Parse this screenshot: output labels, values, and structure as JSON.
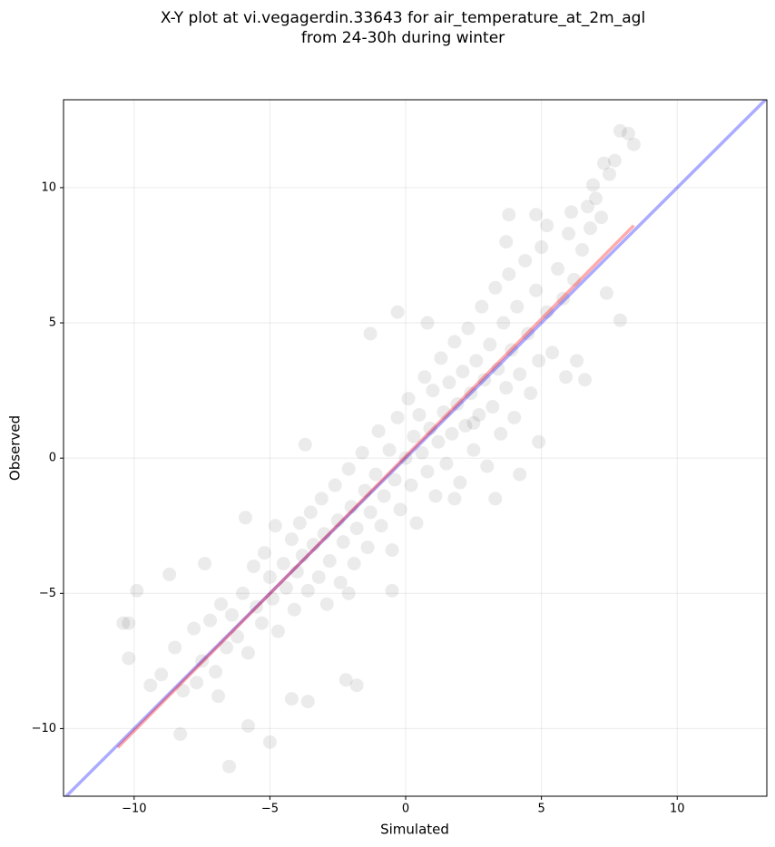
{
  "chart_data": {
    "type": "scatter",
    "title": [
      "X-Y plot at vi.vegagerdin.33643 for air_temperature_at_2m_agl",
      "from 24-30h during winter"
    ],
    "xlabel": "Simulated",
    "ylabel": "Observed",
    "xlim": [
      -12.6,
      13.3
    ],
    "ylim": [
      -12.5,
      13.25
    ],
    "xticks": [
      {
        "value": -10,
        "label": "−10"
      },
      {
        "value": -5,
        "label": "−5"
      },
      0,
      5,
      10
    ],
    "yticks": [
      {
        "value": -10,
        "label": "−10"
      },
      {
        "value": -5,
        "label": "−5"
      },
      0,
      5,
      10
    ],
    "grid": true,
    "series": [
      {
        "color": "#000000",
        "x": [
          -10.4,
          -10.2,
          -9.9,
          -10.2,
          -9.4,
          -8.7,
          -8.3,
          -6.5,
          -5.0,
          -5.8,
          -2.2,
          -1.3,
          -0.3,
          0.8,
          4.9,
          5.9,
          6.3,
          6.6,
          7.4,
          7.9,
          8.2,
          7.9,
          8.4,
          7.7,
          7.3,
          6.9,
          6.7,
          6.1,
          5.2,
          4.8,
          3.8,
          3.7,
          -3.7,
          -1.8,
          -3.6,
          -4.2,
          -6.9,
          -7.7,
          -7.4,
          -5.9,
          -2.1,
          -0.5,
          1.8,
          3.3,
          4.2,
          2.5,
          -9.0,
          -8.5,
          -8.2,
          -7.8,
          -7.5,
          -7.2,
          -7.0,
          -6.8,
          -6.6,
          -6.4,
          -6.2,
          -6.0,
          -5.8,
          -5.6,
          -5.5,
          -5.3,
          -5.2,
          -5.0,
          -4.9,
          -4.8,
          -4.7,
          -4.5,
          -4.4,
          -4.2,
          -4.1,
          -4.0,
          -3.9,
          -3.8,
          -3.6,
          -3.5,
          -3.4,
          -3.2,
          -3.1,
          -3.0,
          -2.9,
          -2.8,
          -2.6,
          -2.5,
          -2.4,
          -2.3,
          -2.1,
          -2.0,
          -1.9,
          -1.8,
          -1.6,
          -1.5,
          -1.4,
          -1.3,
          -1.1,
          -1.0,
          -0.9,
          -0.8,
          -0.6,
          -0.5,
          -0.4,
          -0.3,
          -0.2,
          0.0,
          0.1,
          0.2,
          0.3,
          0.4,
          0.5,
          0.6,
          0.7,
          0.8,
          0.9,
          1.0,
          1.1,
          1.2,
          1.3,
          1.4,
          1.5,
          1.6,
          1.7,
          1.8,
          1.9,
          2.0,
          2.1,
          2.2,
          2.3,
          2.4,
          2.5,
          2.6,
          2.7,
          2.8,
          2.9,
          3.0,
          3.1,
          3.2,
          3.3,
          3.4,
          3.5,
          3.6,
          3.7,
          3.8,
          3.9,
          4.0,
          4.1,
          4.2,
          4.4,
          4.5,
          4.6,
          4.8,
          4.9,
          5.0,
          5.2,
          5.4,
          5.6,
          5.8,
          6.0,
          6.2,
          6.5,
          6.8,
          7.0,
          7.2,
          7.5
        ],
        "values": [
          -6.1,
          -6.1,
          -4.9,
          -7.4,
          -8.4,
          -4.3,
          -10.2,
          -11.4,
          -10.5,
          -9.9,
          -8.2,
          4.6,
          5.4,
          5.0,
          0.6,
          3.0,
          3.6,
          2.9,
          6.1,
          5.1,
          12.0,
          12.1,
          11.6,
          11.0,
          10.9,
          10.1,
          9.3,
          9.1,
          8.6,
          9.0,
          9.0,
          8.0,
          0.5,
          -8.4,
          -9.0,
          -8.9,
          -8.8,
          -8.3,
          -3.9,
          -2.2,
          -5.0,
          -4.9,
          -1.5,
          -1.5,
          -0.6,
          1.3,
          -8.0,
          -7.0,
          -8.6,
          -6.3,
          -7.5,
          -6.0,
          -7.9,
          -5.4,
          -7.0,
          -5.8,
          -6.6,
          -5.0,
          -7.2,
          -4.0,
          -5.5,
          -6.1,
          -3.5,
          -4.4,
          -5.2,
          -2.5,
          -6.4,
          -3.9,
          -4.8,
          -3.0,
          -5.6,
          -4.2,
          -2.4,
          -3.6,
          -4.9,
          -2.0,
          -3.2,
          -4.4,
          -1.5,
          -2.8,
          -5.4,
          -3.8,
          -1.0,
          -2.3,
          -4.6,
          -3.1,
          -0.4,
          -1.8,
          -3.9,
          -2.6,
          0.2,
          -1.2,
          -3.3,
          -2.0,
          -0.6,
          1.0,
          -2.5,
          -1.4,
          0.3,
          -3.4,
          -0.8,
          1.5,
          -1.9,
          0.0,
          2.2,
          -1.0,
          0.8,
          -2.4,
          1.6,
          0.2,
          3.0,
          -0.5,
          1.1,
          2.5,
          -1.4,
          0.6,
          3.7,
          1.7,
          -0.2,
          2.8,
          0.9,
          4.3,
          2.0,
          -0.9,
          3.2,
          1.2,
          4.8,
          2.4,
          0.3,
          3.6,
          1.6,
          5.6,
          2.9,
          -0.3,
          4.2,
          1.9,
          6.3,
          3.3,
          0.9,
          5.0,
          2.6,
          6.8,
          4.0,
          1.5,
          5.6,
          3.1,
          7.3,
          4.6,
          2.4,
          6.2,
          3.6,
          7.8,
          5.4,
          3.9,
          7.0,
          5.9,
          8.3,
          6.6,
          7.7,
          8.5,
          9.6,
          8.9,
          10.5
        ]
      }
    ],
    "lines": [
      {
        "color": "#0000ff",
        "x": [
          -12.6,
          13.3
        ],
        "values": [
          -12.6,
          13.3
        ]
      },
      {
        "color": "#ff0000",
        "x": [
          -10.6,
          8.4
        ],
        "values": [
          -10.7,
          8.6
        ]
      }
    ]
  }
}
